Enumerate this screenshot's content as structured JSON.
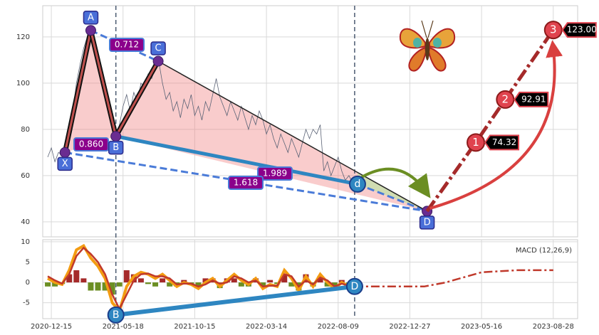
{
  "chart_data": [
    {
      "type": "line",
      "xlim": [
        -12,
        734
      ],
      "ylim": [
        33.5,
        133.5
      ],
      "yticks": [
        40,
        60,
        80,
        100,
        120
      ],
      "grid": true,
      "x": [
        -5,
        0,
        5,
        10,
        15,
        20,
        25,
        30,
        35,
        40,
        45,
        50,
        55,
        60,
        65,
        70,
        75,
        80,
        85,
        90,
        95,
        100,
        105,
        110,
        115,
        120,
        125,
        130,
        135,
        140,
        145,
        150,
        155,
        160,
        165,
        170,
        175,
        180,
        185,
        190,
        195,
        200,
        205,
        210,
        215,
        220,
        225,
        230,
        235,
        240,
        245,
        250,
        255,
        260,
        265,
        270,
        275,
        280,
        285,
        290,
        295,
        300,
        305,
        310,
        315,
        320,
        325,
        330,
        335,
        340,
        345,
        350,
        355,
        360,
        365,
        370,
        375,
        380,
        385,
        390,
        395,
        400,
        405,
        410,
        415,
        420
      ],
      "values": [
        68,
        72,
        66,
        70,
        69,
        72,
        80,
        88,
        100,
        108,
        115,
        120,
        123,
        118,
        112,
        105,
        98,
        92,
        84,
        77,
        82,
        90,
        95,
        88,
        96,
        92,
        100,
        98,
        104,
        102,
        107,
        109,
        100,
        93,
        96,
        88,
        92,
        85,
        93,
        89,
        95,
        86,
        90,
        84,
        92,
        88,
        95,
        102,
        94,
        90,
        86,
        92,
        88,
        84,
        90,
        85,
        80,
        86,
        82,
        88,
        84,
        78,
        82,
        76,
        72,
        78,
        74,
        70,
        76,
        72,
        68,
        74,
        80,
        76,
        80,
        78,
        82,
        62,
        66,
        60,
        64,
        68,
        62,
        58,
        60,
        57
      ],
      "color": "#5a6275",
      "vlines": [
        90,
        423
      ],
      "pattern_labels": [
        "X",
        "A",
        "B",
        "C",
        "D"
      ],
      "pattern_x": [
        19,
        55,
        90,
        149,
        524
      ],
      "pattern_y": [
        70,
        122.8,
        77,
        109.5,
        44.6
      ],
      "d_label": "d",
      "d_x": 427,
      "d_y": 56.3,
      "ratio_labels": [
        "0.712",
        "0.860",
        "1.989",
        "1.618"
      ],
      "targets": {
        "labels": [
          "1",
          "2",
          "3"
        ],
        "x": [
          592,
          633,
          700
        ],
        "values": [
          74.32,
          92.91,
          123
        ],
        "value_labels": [
          "74.32",
          "92.91",
          "123.00"
        ]
      }
    },
    {
      "type": "line",
      "xlim": [
        -12,
        734
      ],
      "ylim": [
        -8.9,
        10.5
      ],
      "yticks": [
        -5,
        0,
        5,
        10
      ],
      "grid": true,
      "xticks": [
        {
          "value": 0,
          "label": "2020-12-15"
        },
        {
          "value": 100,
          "label": "2021-05-18"
        },
        {
          "value": 200,
          "label": "2021-10-15"
        },
        {
          "value": 300,
          "label": "2022-03-14"
        },
        {
          "value": 400,
          "label": "2022-08-09"
        },
        {
          "value": 500,
          "label": "2022-12-27"
        },
        {
          "value": 600,
          "label": "2023-05-16"
        },
        {
          "value": 700,
          "label": "2023-08-28"
        }
      ],
      "annotation": "MACD (12,26,9)",
      "x": [
        -5,
        5,
        15,
        25,
        35,
        45,
        55,
        65,
        75,
        85,
        95,
        105,
        115,
        125,
        135,
        145,
        155,
        165,
        175,
        185,
        195,
        205,
        215,
        225,
        235,
        245,
        255,
        265,
        275,
        285,
        295,
        305,
        315,
        325,
        335,
        345,
        355,
        365,
        375,
        385,
        395,
        405,
        415
      ],
      "macd": {
        "color": "#f39c12",
        "values": [
          1,
          0,
          -0.5,
          3,
          8,
          9,
          6,
          4,
          1,
          -5,
          -7,
          -1,
          1.5,
          2.5,
          2,
          1,
          2,
          0.5,
          -1,
          0,
          -0.5,
          -1.5,
          0,
          1,
          -1,
          0.5,
          2,
          0.5,
          -0.5,
          1,
          -1.5,
          -0.5,
          -1,
          3,
          1,
          -2,
          1.5,
          -1,
          2,
          0,
          -1.5,
          0,
          -1
        ]
      },
      "signal": {
        "color": "#c0392b",
        "values": [
          1.5,
          0.5,
          -0.3,
          2,
          6.5,
          8.5,
          7,
          5,
          2,
          -3,
          -6.5,
          -3,
          0.5,
          2,
          2.2,
          1.5,
          1.5,
          1,
          -0.5,
          -0.3,
          -0.3,
          -1,
          -0.5,
          0.5,
          -0.3,
          0,
          1.5,
          1,
          0,
          0.5,
          -1,
          -0.8,
          -0.8,
          2,
          1.5,
          -1,
          0.5,
          -0.5,
          1.2,
          0.5,
          -1,
          -0.3,
          -0.8
        ]
      },
      "histogram": [
        -1,
        -1,
        -0.4,
        2,
        3,
        1,
        -2,
        -2,
        -2,
        -3,
        -1,
        3,
        2,
        1,
        -0.4,
        -1,
        1,
        -1,
        -1,
        0.6,
        -0.4,
        -1,
        1,
        1,
        -1.4,
        1,
        1,
        -1,
        -1,
        1,
        -1,
        0.6,
        -0.4,
        2,
        -1,
        -2,
        2,
        -1,
        1.6,
        -1,
        -1,
        0.6,
        -0.4
      ],
      "histogram_colors": {
        "positive": "#a52a2a",
        "negative": "#6b8e23"
      },
      "projection": {
        "color": "#c0392b",
        "x": [
          423,
          470,
          520,
          550,
          600,
          650,
          700
        ],
        "values": [
          -1,
          -1,
          -1,
          0,
          2.5,
          3,
          3
        ]
      },
      "pattern_labels": [
        "B",
        "D"
      ],
      "pattern_x": [
        90,
        423
      ],
      "pattern_y": [
        -8,
        -1
      ]
    }
  ]
}
